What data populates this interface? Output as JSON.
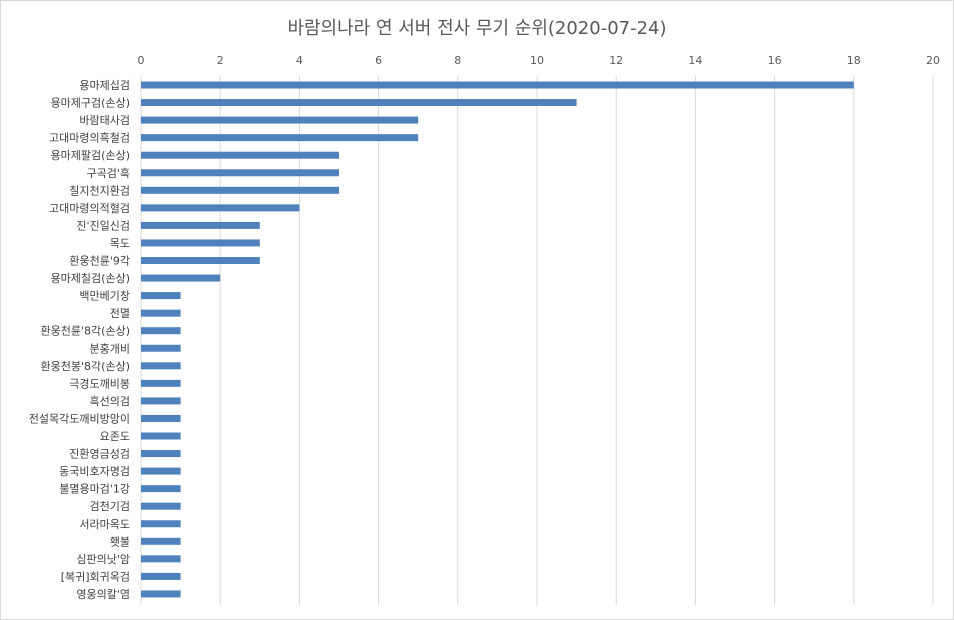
{
  "chart_data": {
    "type": "bar",
    "orientation": "horizontal",
    "title": "바람의나라 연 서버 전사 무기 순위(2020-07-24)",
    "xlabel": "",
    "ylabel": "",
    "xlim": [
      0,
      20
    ],
    "x_ticks": [
      0,
      2,
      4,
      6,
      8,
      10,
      12,
      14,
      16,
      18,
      20
    ],
    "x_axis_position": "top",
    "grid": true,
    "legend": "none",
    "bar_color": "#4f81bd",
    "categories": [
      "용마제십검",
      "용마제구검(손상)",
      "바람태사검",
      "고대마령의흑철검",
      "용마제팔검(손상)",
      "구곡검'흑",
      "칠지천지환검",
      "고대마령의적혈검",
      "진'진일신검",
      "목도",
      "환웅천륜'9각",
      "용마제칠검(손상)",
      "백만베기창",
      "전멸",
      "환웅천륜'8각(손상)",
      "분홍개비",
      "환웅천봉'8각(손상)",
      "극경도깨비봉",
      "흑선의검",
      "전설목각도깨비방망이",
      "요존도",
      "진환영금성검",
      "동국비호자명검",
      "불멸용마검'1강",
      "검천기검",
      "서라마옥도",
      "횃불",
      "심판의낫'암",
      "[복귀]회귀옥검",
      "영웅의칼'염"
    ],
    "values": [
      18,
      11,
      7,
      7,
      5,
      5,
      5,
      4,
      3,
      3,
      3,
      2,
      1,
      1,
      1,
      1,
      1,
      1,
      1,
      1,
      1,
      1,
      1,
      1,
      1,
      1,
      1,
      1,
      1,
      1
    ]
  }
}
